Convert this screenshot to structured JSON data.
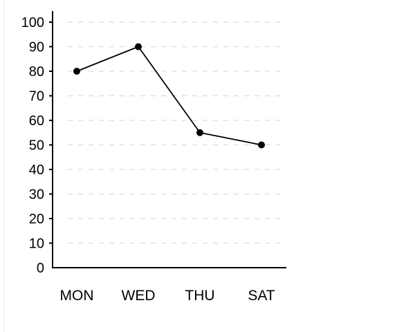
{
  "chart_data": {
    "type": "line",
    "categories": [
      "MON",
      "WED",
      "THU",
      "SAT"
    ],
    "series": [
      {
        "values": [
          80,
          90,
          55,
          50
        ]
      }
    ],
    "title": "",
    "xlabel": "",
    "ylabel": "",
    "ylim": [
      0,
      100
    ],
    "yticks": [
      0,
      10,
      20,
      30,
      40,
      50,
      60,
      70,
      80,
      90,
      100
    ],
    "ytick_labels": [
      "0",
      "10",
      "20",
      "30",
      "40",
      "50",
      "60",
      "70",
      "80",
      "90",
      "100"
    ],
    "grid": true,
    "grid_style": "dashed",
    "colors": {
      "line": "#000000",
      "marker": "#000000",
      "axis": "#000000",
      "grid": "#d9d9d9",
      "text": "#000000"
    }
  }
}
